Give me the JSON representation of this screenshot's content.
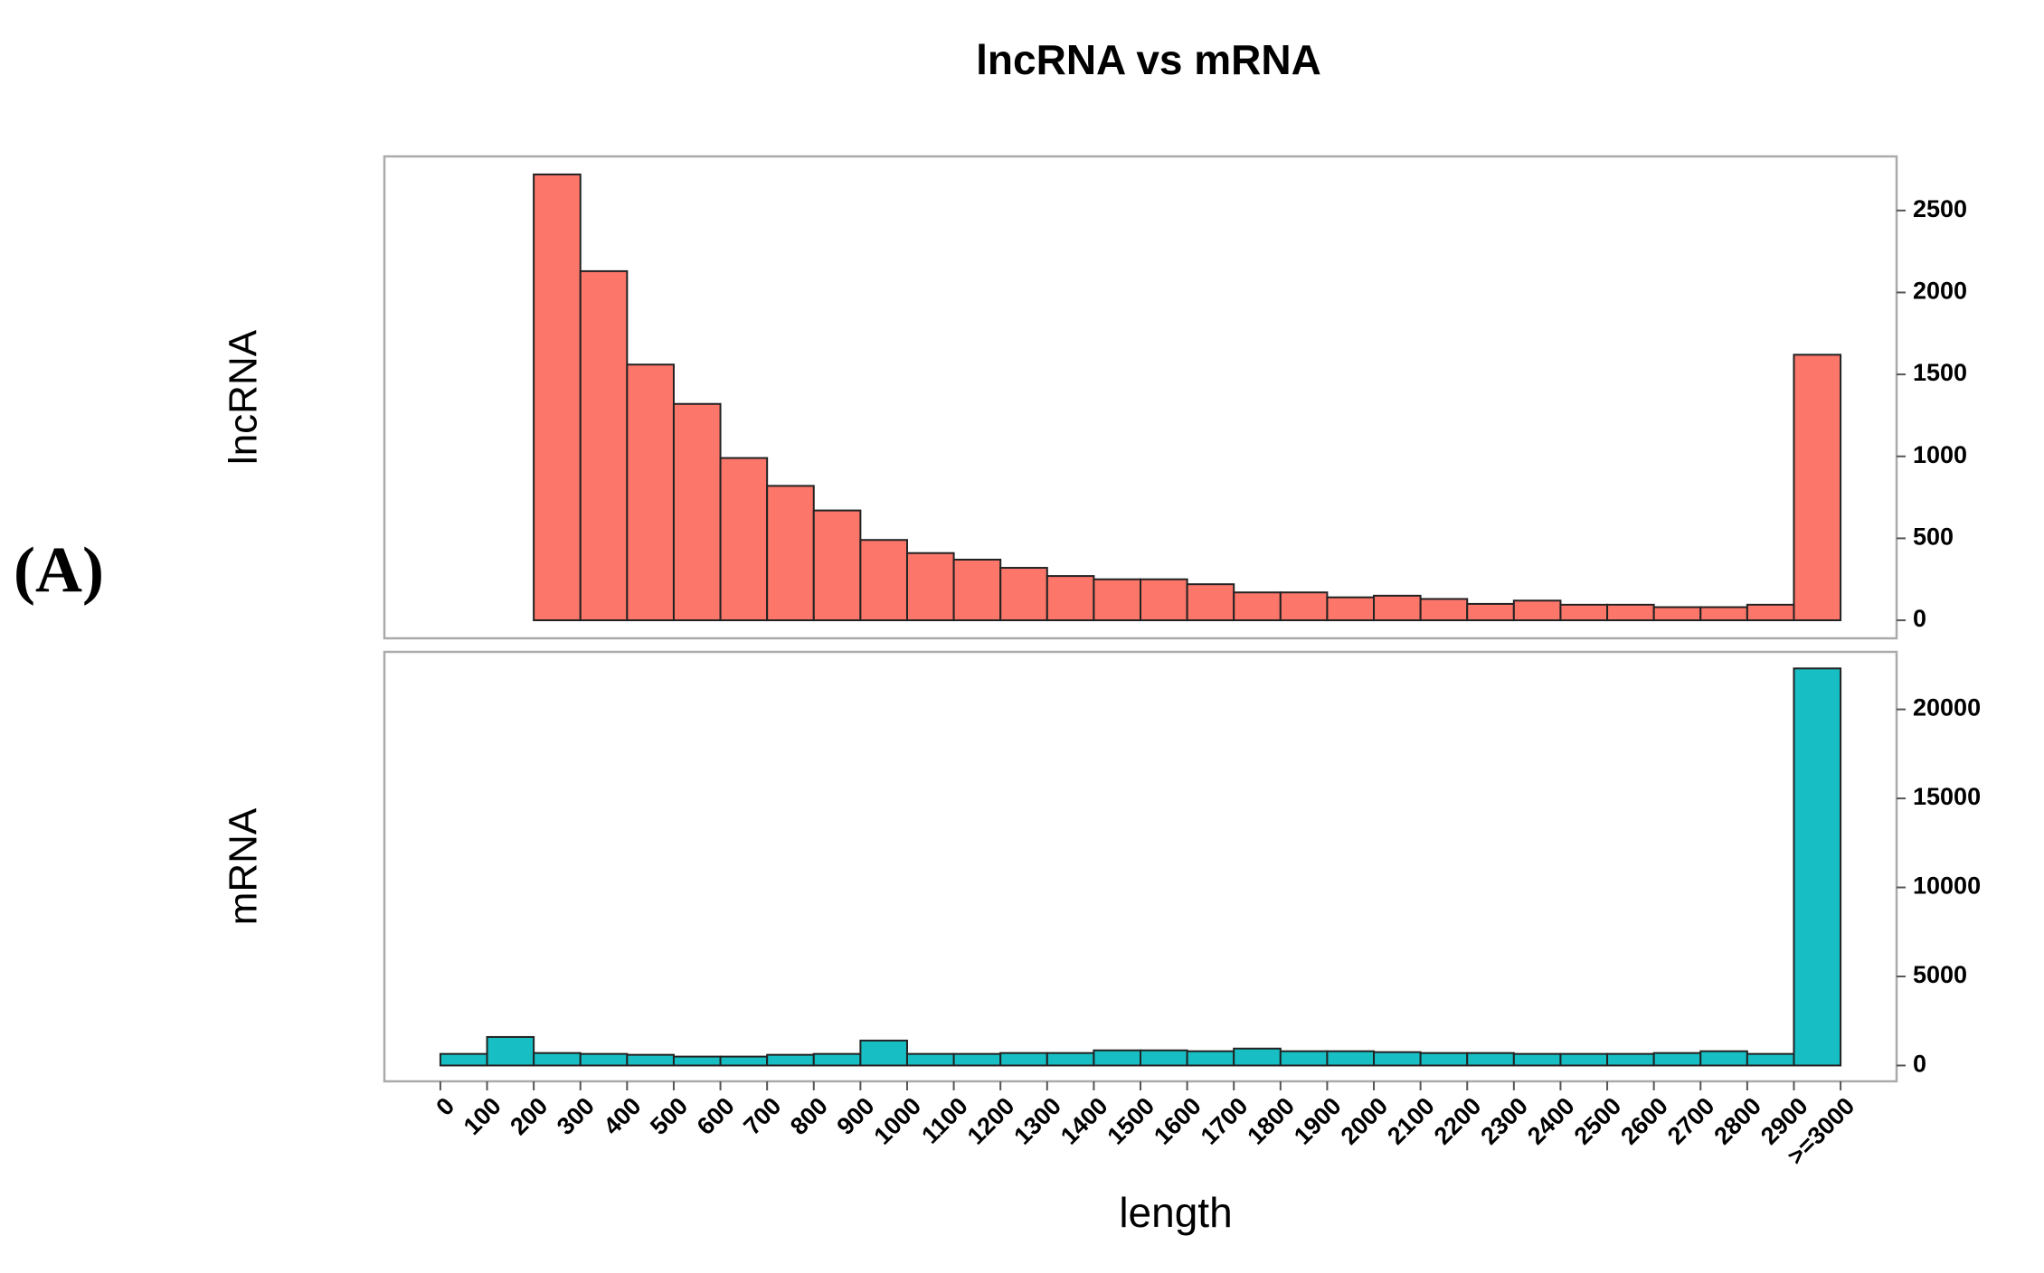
{
  "panel_label": "(A)",
  "chart_data": {
    "type": "histogram",
    "title": "lncRNA vs mRNA",
    "xlabel": "length",
    "bins": [
      0,
      100,
      200,
      300,
      400,
      500,
      600,
      700,
      800,
      900,
      1000,
      1100,
      1200,
      1300,
      1400,
      1500,
      1600,
      1700,
      1800,
      1900,
      2000,
      2100,
      2200,
      2300,
      2400,
      2500,
      2600,
      2700,
      2800,
      2900,
      3000
    ],
    "xlim": [
      -120,
      3120
    ],
    "xticks": [
      0,
      100,
      200,
      300,
      400,
      500,
      600,
      700,
      800,
      900,
      1000,
      1100,
      1200,
      1300,
      1400,
      1500,
      1600,
      1700,
      1800,
      1900,
      2000,
      2100,
      2200,
      2300,
      2400,
      2500,
      2600,
      2700,
      2800,
      2900,
      {
        "value": 3000,
        "label": ">=3000"
      }
    ],
    "series": [
      {
        "name": "lncRNA",
        "color": "#fc766a",
        "values": [
          0,
          0,
          2720,
          2130,
          1560,
          1320,
          990,
          820,
          670,
          490,
          410,
          370,
          320,
          270,
          250,
          250,
          220,
          170,
          170,
          140,
          150,
          130,
          100,
          120,
          95,
          95,
          80,
          80,
          95,
          1620
        ],
        "ylim": [
          -110,
          2830
        ],
        "yticks": [
          0,
          500,
          1000,
          1500,
          2000,
          2500
        ]
      },
      {
        "name": "mRNA",
        "color": "#17bfc4",
        "values": [
          650,
          1600,
          700,
          650,
          600,
          500,
          500,
          600,
          650,
          1400,
          650,
          650,
          700,
          700,
          850,
          850,
          800,
          950,
          800,
          800,
          750,
          700,
          700,
          650,
          650,
          650,
          700,
          800,
          650,
          22300
        ],
        "ylim": [
          -890,
          23230
        ],
        "yticks": [
          0,
          5000,
          10000,
          15000,
          20000
        ]
      }
    ]
  }
}
